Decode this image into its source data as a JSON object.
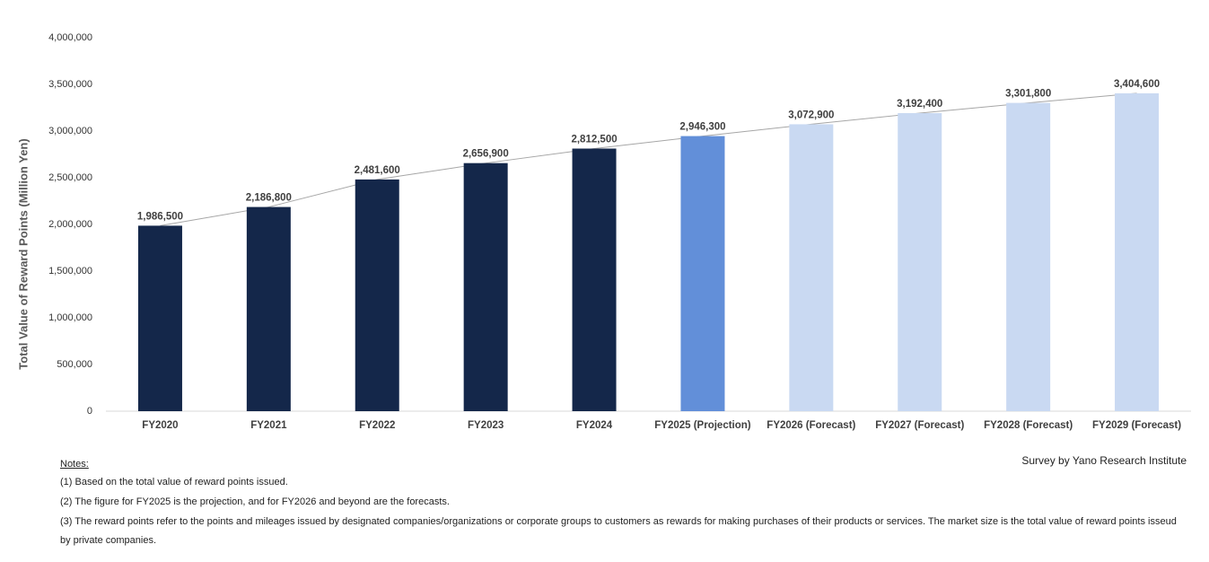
{
  "chart_data": {
    "type": "bar",
    "y_axis_label": "Total Value of Reward Points (Million Yen)",
    "categories": [
      "FY2020",
      "FY2021",
      "FY2022",
      "FY2023",
      "FY2024",
      "FY2025 (Projection)",
      "FY2026 (Forecast)",
      "FY2027 (Forecast)",
      "FY2028 (Forecast)",
      "FY2029 (Forecast)"
    ],
    "values": [
      1986500,
      2186800,
      2481600,
      2656900,
      2812500,
      2946300,
      3072900,
      3192400,
      3301800,
      3404600
    ],
    "value_labels": [
      "1,986,500",
      "2,186,800",
      "2,481,600",
      "2,656,900",
      "2,812,500",
      "2,946,300",
      "3,072,900",
      "3,192,400",
      "3,301,800",
      "3,404,600"
    ],
    "colors": [
      "#14274a",
      "#14274a",
      "#14274a",
      "#14274a",
      "#14274a",
      "#628fd9",
      "#c9d9f2",
      "#c9d9f2",
      "#c9d9f2",
      "#c9d9f2"
    ],
    "connector_color": "#a6a6a6",
    "ylim": [
      0,
      4000000
    ],
    "yticks": [
      0,
      {
        "value": 500000,
        "label": "500,000"
      },
      {
        "value": 1000000,
        "label": "1,000,000"
      },
      {
        "value": 1500000,
        "label": "1,500,000"
      },
      {
        "value": 2000000,
        "label": "2,000,000"
      },
      {
        "value": 2500000,
        "label": "2,500,000"
      },
      {
        "value": 3000000,
        "label": "3,000,000"
      },
      {
        "value": 3500000,
        "label": "3,500,000"
      },
      {
        "value": 4000000,
        "label": "4,000,000"
      }
    ],
    "grid": false,
    "notes_title": "Notes:",
    "notes": [
      "(1) Based on the total value of reward points issued.",
      "(2) The figure for FY2025 is the projection, and for FY2026 and beyond are the forecasts.",
      "(3) The reward points refer to the points and mileages issued by designated companies/organizations or corporate groups to customers as rewards for making purchases of their products or services. The market size is the total value of reward points isseud by private companies."
    ],
    "source": "Survey by Yano Research Institute"
  }
}
